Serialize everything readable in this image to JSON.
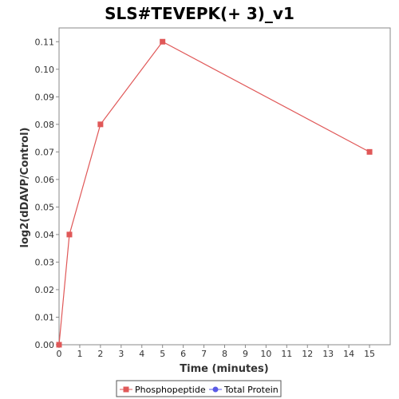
{
  "chart_data": {
    "type": "line",
    "title": "SLS#TEVEPK(+ 3)_v1",
    "xlabel": "Time (minutes)",
    "ylabel": "log2(dDAVP/Control)",
    "xlim": [
      0,
      16
    ],
    "ylim": [
      0,
      0.115
    ],
    "x_ticks": [
      "0",
      "1",
      "2",
      "3",
      "4",
      "5",
      "6",
      "7",
      "8",
      "9",
      "10",
      "11",
      "12",
      "13",
      "14",
      "15"
    ],
    "y_ticks": [
      "0.00",
      "0.01",
      "0.02",
      "0.03",
      "0.04",
      "0.05",
      "0.06",
      "0.07",
      "0.08",
      "0.09",
      "0.10",
      "0.11"
    ],
    "grid": false,
    "legend_position": "bottom",
    "series": [
      {
        "name": "Phosphopeptide",
        "color": "#e05858",
        "marker": "square",
        "x": [
          0,
          0.5,
          2,
          5,
          15
        ],
        "y": [
          0.0,
          0.04,
          0.08,
          0.11,
          0.07
        ]
      },
      {
        "name": "Total Protein",
        "color": "#5a5ae6",
        "marker": "circle",
        "x": [],
        "y": []
      }
    ]
  }
}
